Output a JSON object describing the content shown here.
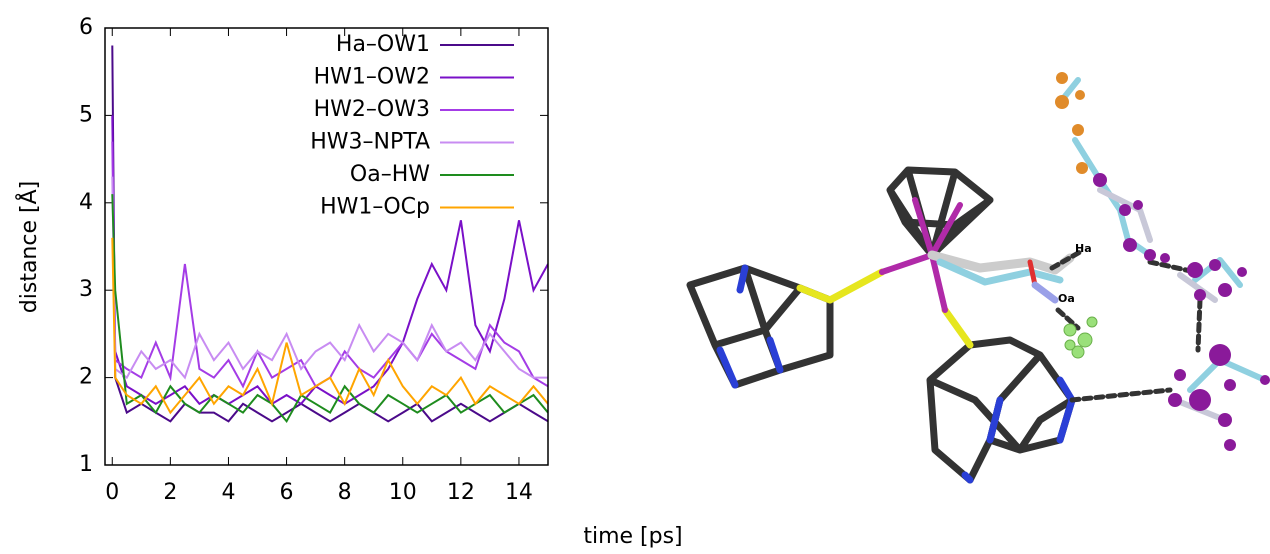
{
  "chart_data": {
    "type": "line",
    "xlabel": "time [ps]",
    "ylabel": "distance [Å]",
    "x": [
      0,
      0.1,
      0.5,
      1,
      1.5,
      2,
      2.5,
      3,
      3.5,
      4,
      4.5,
      5,
      5.5,
      6,
      6.5,
      7,
      7.5,
      8,
      8.5,
      9,
      9.5,
      10,
      10.5,
      11,
      11.5,
      12,
      12.5,
      13,
      13.5,
      14,
      14.5,
      15
    ],
    "series": [
      {
        "name": "Ha–OW1",
        "color": "#4b0a8a",
        "values": [
          5.8,
          2.0,
          1.6,
          1.7,
          1.6,
          1.5,
          1.7,
          1.6,
          1.6,
          1.5,
          1.7,
          1.6,
          1.5,
          1.6,
          1.7,
          1.6,
          1.5,
          1.6,
          1.7,
          1.6,
          1.5,
          1.6,
          1.7,
          1.5,
          1.6,
          1.7,
          1.6,
          1.5,
          1.6,
          1.7,
          1.6,
          1.5
        ]
      },
      {
        "name": "HW1–OW2",
        "color": "#7a10c8",
        "values": [
          5.0,
          2.3,
          1.9,
          1.8,
          1.7,
          1.8,
          1.9,
          1.7,
          1.8,
          1.7,
          1.8,
          1.9,
          1.7,
          1.8,
          1.7,
          1.9,
          1.8,
          1.7,
          1.8,
          1.9,
          2.1,
          2.4,
          2.9,
          3.3,
          3.0,
          3.8,
          2.6,
          2.3,
          2.9,
          3.8,
          3.0,
          3.3
        ]
      },
      {
        "name": "HW2–OW3",
        "color": "#a43ce6",
        "values": [
          4.7,
          2.2,
          2.1,
          2.0,
          2.4,
          2.0,
          3.3,
          2.1,
          2.0,
          2.2,
          1.9,
          2.3,
          2.0,
          2.1,
          2.2,
          1.9,
          2.0,
          2.3,
          2.1,
          2.0,
          2.2,
          2.4,
          2.2,
          2.5,
          2.3,
          2.2,
          2.1,
          2.6,
          2.4,
          2.3,
          2.0,
          1.9
        ]
      },
      {
        "name": "HW3–NPTA",
        "color": "#c88cf2",
        "values": [
          4.3,
          2.1,
          2.0,
          2.3,
          2.1,
          2.2,
          2.0,
          2.5,
          2.2,
          2.4,
          2.1,
          2.3,
          2.2,
          2.5,
          2.1,
          2.3,
          2.4,
          2.2,
          2.6,
          2.3,
          2.5,
          2.4,
          2.2,
          2.6,
          2.3,
          2.4,
          2.2,
          2.5,
          2.3,
          2.1,
          2.0,
          2.0
        ]
      },
      {
        "name": "Oa–HW",
        "color": "#1e8c1e",
        "values": [
          4.1,
          3.0,
          1.7,
          1.8,
          1.6,
          1.9,
          1.7,
          1.6,
          1.8,
          1.7,
          1.6,
          1.8,
          1.7,
          1.5,
          1.8,
          1.7,
          1.6,
          1.9,
          1.7,
          1.6,
          1.8,
          1.7,
          1.6,
          1.7,
          1.8,
          1.6,
          1.7,
          1.8,
          1.6,
          1.7,
          1.8,
          1.6
        ]
      },
      {
        "name": "HW1–OCp",
        "color": "#ffa500",
        "values": [
          3.6,
          2.0,
          1.8,
          1.7,
          1.9,
          1.6,
          1.8,
          2.0,
          1.7,
          1.9,
          1.8,
          2.1,
          1.7,
          2.4,
          1.8,
          1.9,
          2.0,
          1.7,
          2.1,
          1.8,
          2.2,
          1.9,
          1.7,
          1.9,
          1.8,
          2.0,
          1.7,
          1.9,
          1.8,
          1.7,
          1.9,
          1.7
        ]
      }
    ],
    "xlim": [
      -0.25,
      15
    ],
    "ylim": [
      1,
      6
    ],
    "xticks": [
      0,
      2,
      4,
      6,
      8,
      10,
      12,
      14
    ],
    "yticks": [
      1,
      2,
      3,
      4,
      5,
      6
    ]
  },
  "molecule_labels": {
    "ha": "Ha",
    "oa": "Oa"
  }
}
